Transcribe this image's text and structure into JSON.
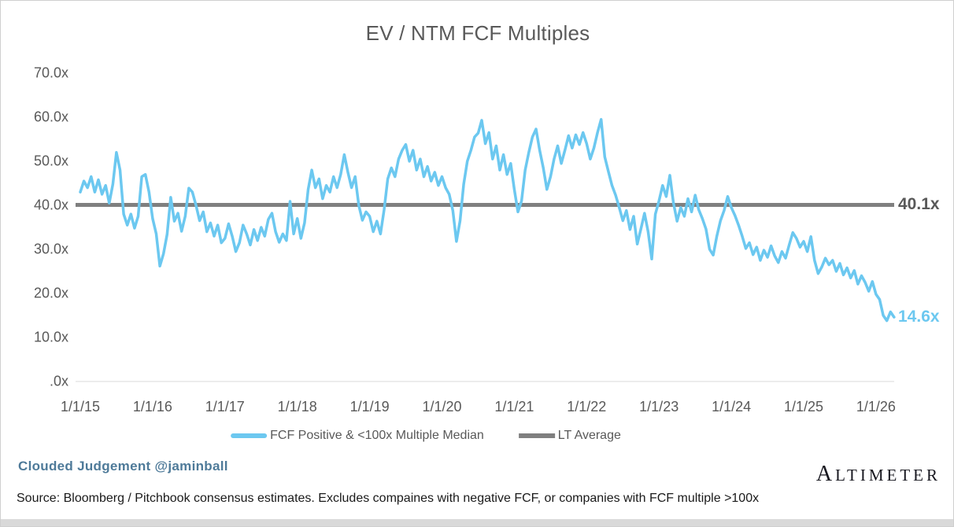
{
  "title": "EV / NTM FCF Multiples",
  "annotations": {
    "lt_average_label": "40.1x",
    "last_value_label": "14.6x"
  },
  "legend": {
    "items": [
      {
        "label": "FCF Positive & <100x Multiple Median",
        "color": "#6cc8f0"
      },
      {
        "label": "LT Average",
        "color": "#7f7f7f"
      }
    ]
  },
  "footer": {
    "byline": "Clouded Judgement @jaminball",
    "logo_text": "ALTIMETER",
    "source": "Source: Bloomberg / Pitchbook consensus estimates. Excludes compaines with negative FCF, or companies with FCF multiple >100x"
  },
  "colors": {
    "series_blue": "#6cc8f0",
    "average_gray": "#7f7f7f",
    "axis_text": "#595959",
    "byline_blue": "#4e7a99",
    "axis_line": "#d9d9d9"
  },
  "chart_data": {
    "type": "line",
    "title": "EV / NTM FCF Multiples",
    "xlabel": "",
    "ylabel": "",
    "grid": false,
    "legend_position": "bottom",
    "ylim": [
      0,
      70
    ],
    "y_ticks": [
      70,
      60,
      50,
      40,
      30,
      20,
      10,
      0
    ],
    "y_tick_labels": [
      "70.0x",
      "60.0x",
      "50.0x",
      "40.0x",
      "30.0x",
      "20.0x",
      "10.0x",
      ".0x"
    ],
    "x_tick_labels": [
      "1/1/15",
      "1/1/16",
      "1/1/17",
      "1/1/18",
      "1/1/19",
      "1/1/20",
      "1/1/21",
      "1/1/22",
      "1/1/23",
      "1/1/24",
      "1/1/25",
      "1/1/26"
    ],
    "x_unit": "decimal_year",
    "xlim": [
      2015.0,
      2026.35
    ],
    "lt_average": 40.1,
    "last_value": 14.6,
    "series": [
      {
        "name": "FCF Positive & <100x Multiple Median",
        "color": "#6cc8f0",
        "x_start": 2015.0,
        "x_step": 0.05,
        "y": [
          43.0,
          45.5,
          44.0,
          46.5,
          43.0,
          45.8,
          42.5,
          44.5,
          40.5,
          44.8,
          52.0,
          48.0,
          38.0,
          35.5,
          38.0,
          34.8,
          37.5,
          46.5,
          47.0,
          43.0,
          37.0,
          33.5,
          26.2,
          29.0,
          33.4,
          41.8,
          36.4,
          38.2,
          34.1,
          37.5,
          43.9,
          43.0,
          40.0,
          36.5,
          38.5,
          34.0,
          36.0,
          33.0,
          35.5,
          31.5,
          32.5,
          35.8,
          33.0,
          29.5,
          31.5,
          35.5,
          33.5,
          31.0,
          34.5,
          32.0,
          35.0,
          33.0,
          36.8,
          38.2,
          34.0,
          31.6,
          33.5,
          32.0,
          40.9,
          33.5,
          37.0,
          32.5,
          36.0,
          43.6,
          48.0,
          44.0,
          46.0,
          41.5,
          44.5,
          43.0,
          46.5,
          44.0,
          47.0,
          51.5,
          47.5,
          44.0,
          46.5,
          40.0,
          36.6,
          38.5,
          37.5,
          34.0,
          36.4,
          33.5,
          39.0,
          46.0,
          48.5,
          46.5,
          50.5,
          52.5,
          53.8,
          50.0,
          52.5,
          48.0,
          50.5,
          46.5,
          48.8,
          45.5,
          47.5,
          44.5,
          46.5,
          44.0,
          42.5,
          38.8,
          31.8,
          36.5,
          44.8,
          50.0,
          52.5,
          55.5,
          56.4,
          59.3,
          54.0,
          56.5,
          50.5,
          53.5,
          48.0,
          51.5,
          47.0,
          49.5,
          43.6,
          38.5,
          41.0,
          48.0,
          52.0,
          55.5,
          57.3,
          52.5,
          48.5,
          43.6,
          46.5,
          50.5,
          53.5,
          49.5,
          52.5,
          55.8,
          53.0,
          56.0,
          53.8,
          56.5,
          54.0,
          50.5,
          53.0,
          56.5,
          59.5,
          51.0,
          47.7,
          44.5,
          42.3,
          39.5,
          36.5,
          38.8,
          34.5,
          37.5,
          31.2,
          34.6,
          38.2,
          34.0,
          27.8,
          38.0,
          41.0,
          44.5,
          42.0,
          46.8,
          40.5,
          36.4,
          39.5,
          37.5,
          41.5,
          38.5,
          42.3,
          39.0,
          37.0,
          34.6,
          30.0,
          28.7,
          33.0,
          36.5,
          38.8,
          42.0,
          39.5,
          37.7,
          35.5,
          33.0,
          30.2,
          31.5,
          28.8,
          30.5,
          27.5,
          29.8,
          28.2,
          30.8,
          28.5,
          27.0,
          29.5,
          28.0,
          31.0,
          33.8,
          32.5,
          30.5,
          31.8,
          29.5,
          32.9,
          27.5,
          24.5,
          26.0,
          28.0,
          26.5,
          27.5,
          25.0,
          26.8,
          24.2,
          25.8,
          23.5,
          25.2,
          22.1,
          24.0,
          22.5,
          20.5,
          22.7,
          19.8,
          18.6,
          15.0,
          13.8,
          15.8,
          14.6
        ]
      },
      {
        "name": "LT Average",
        "color": "#7f7f7f",
        "value": 40.1
      }
    ]
  }
}
